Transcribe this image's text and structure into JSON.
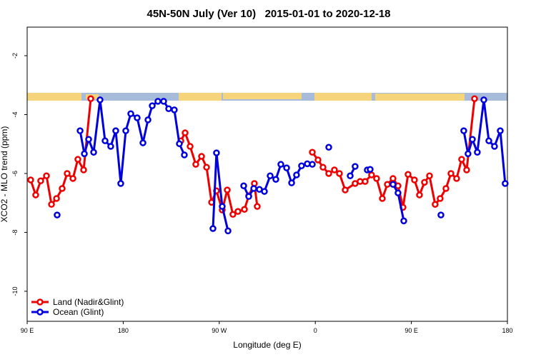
{
  "chart_data": {
    "type": "line",
    "title": "45N-50N July (Ver 10)   2015-01-01 to 2020-12-18",
    "x_label": "Longitude (deg E)",
    "y_label": "XCO2 - MLO trend (ppm)",
    "xlim": [
      90,
      540
    ],
    "xticks": [
      {
        "value": 90,
        "label": "90 E"
      },
      {
        "value": 180,
        "label": "180"
      },
      {
        "value": 270,
        "label": "90 W"
      },
      {
        "value": 360,
        "label": "0"
      },
      {
        "value": 450,
        "label": "90 E"
      },
      {
        "value": 540,
        "label": "180"
      }
    ],
    "ylim": [
      -11.02,
      -1.03
    ],
    "yticks": [
      -2,
      -4,
      -6,
      -8,
      -10
    ],
    "legend": "bottom-left",
    "series": [
      {
        "name": "Land (Nadir&Glint)",
        "color": "#ee0000",
        "x": [
          93.3,
          98.0,
          102.7,
          108.1,
          112.8,
          117.5,
          122.8,
          127.5,
          132.9,
          137.5,
          142.9,
          149.6,
          null,
          234.0,
          238.0,
          242.7,
          248.0,
          253.4,
          258.1,
          262.8,
          267.4,
          272.8,
          277.5,
          282.8,
          287.5,
          293.6,
          297.6,
          302.9,
          305.6,
          null,
          357.2,
          362.5,
          367.2,
          372.6,
          377.9,
          382.6,
          388.0,
          397.3,
          402.0,
          406.7,
          412.7,
          417.4,
          422.8,
          427.5,
          432.8,
          437.5,
          442.2,
          446.9,
          452.9,
          457.6,
          462.3,
          467.0,
          472.3,
          477.0,
          482.4,
          487.1,
          492.4,
          497.1,
          501.8,
          509.2
        ],
        "values": [
          -6.22,
          -6.73,
          -6.25,
          -6.08,
          -7.05,
          -6.85,
          -6.51,
          -6.0,
          -6.17,
          -5.52,
          -5.88,
          -3.46,
          null,
          -4.89,
          -4.62,
          -5.08,
          -5.69,
          -5.42,
          -5.79,
          -6.98,
          -6.59,
          -7.24,
          -6.56,
          -7.39,
          -7.29,
          -7.22,
          -6.76,
          -6.34,
          -7.12,
          null,
          -5.28,
          -5.54,
          -5.79,
          -6.0,
          -5.88,
          -6.0,
          -6.56,
          -6.34,
          -6.27,
          -6.27,
          -6.05,
          -6.17,
          -6.85,
          -6.37,
          -6.17,
          -6.42,
          -7.15,
          -6.03,
          -6.22,
          -6.73,
          -6.3,
          -6.08,
          -7.05,
          -6.85,
          -6.51,
          -6.0,
          -6.17,
          -5.52,
          -5.88,
          -3.46
        ]
      },
      {
        "name": "Ocean (Glint)",
        "color": "#0000dd",
        "x": [
          118.1,
          null,
          139.6,
          143.6,
          147.6,
          152.3,
          158.3,
          163.0,
          168.3,
          173.0,
          177.7,
          182.4,
          187.1,
          193.1,
          198.5,
          203.2,
          207.2,
          212.5,
          217.9,
          222.6,
          227.9,
          232.6,
          237.3,
          null,
          264.1,
          267.4,
          272.8,
          278.2,
          null,
          292.9,
          297.6,
          302.3,
          307.6,
          312.3,
          317.7,
          323.0,
          327.7,
          333.1,
          337.8,
          342.4,
          347.1,
          352.5,
          357.2,
          null,
          372.6,
          null,
          392.7,
          397.3,
          null,
          408.7,
          411.4,
          null,
          432.8,
          437.5,
          442.9,
          null,
          477.7,
          null,
          499.1,
          503.1,
          507.2,
          511.8,
          517.9,
          522.6,
          527.9,
          533.3,
          537.9
        ],
        "values": [
          -7.41,
          null,
          -4.55,
          -5.33,
          -4.84,
          -5.28,
          -3.5,
          -4.89,
          -5.08,
          -4.55,
          -6.34,
          -4.55,
          -3.97,
          -4.11,
          -4.96,
          -4.18,
          -3.7,
          -3.55,
          -3.55,
          -3.8,
          -3.84,
          -4.99,
          -5.37,
          null,
          -7.87,
          -5.3,
          -7.12,
          -7.95,
          null,
          -6.42,
          -6.78,
          -6.51,
          -6.54,
          -6.61,
          -6.08,
          -6.2,
          -5.69,
          -5.81,
          -6.32,
          -6.05,
          -5.74,
          -5.67,
          -5.69,
          null,
          -5.11,
          null,
          -6.08,
          -5.76,
          null,
          -5.88,
          -5.86,
          null,
          -6.37,
          -6.66,
          -7.61,
          null,
          -7.41,
          null,
          -4.55,
          -5.33,
          -4.84,
          -5.28,
          -3.5,
          -4.89,
          -5.08,
          -4.55,
          -6.34
        ]
      }
    ]
  }
}
